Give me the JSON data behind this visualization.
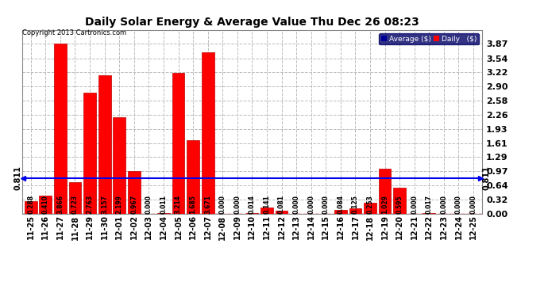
{
  "title": "Daily Solar Energy & Average Value Thu Dec 26 08:23",
  "copyright": "Copyright 2013 Cartronics.com",
  "categories": [
    "11-25",
    "11-26",
    "11-27",
    "11-28",
    "11-29",
    "11-30",
    "12-01",
    "12-02",
    "12-03",
    "12-04",
    "12-05",
    "12-06",
    "12-07",
    "12-08",
    "12-09",
    "12-10",
    "12-11",
    "12-12",
    "12-13",
    "12-14",
    "12-15",
    "12-16",
    "12-17",
    "12-18",
    "12-19",
    "12-20",
    "12-21",
    "12-22",
    "12-23",
    "12-24",
    "12-25"
  ],
  "values": [
    0.288,
    0.41,
    3.866,
    0.723,
    2.763,
    3.157,
    2.199,
    0.967,
    0.0,
    0.011,
    3.214,
    1.685,
    3.671,
    0.0,
    0.0,
    0.014,
    0.141,
    0.081,
    0.0,
    0.0,
    0.0,
    0.084,
    0.125,
    0.253,
    1.029,
    0.595,
    0.0,
    0.017,
    0.0,
    0.0,
    0.0
  ],
  "average_line": 0.811,
  "ylim": [
    0.0,
    4.19
  ],
  "yticks": [
    0.0,
    0.32,
    0.64,
    0.97,
    1.29,
    1.61,
    1.93,
    2.26,
    2.58,
    2.9,
    3.22,
    3.54,
    3.87
  ],
  "bar_color": "#FF0000",
  "bar_edge_color": "#BB0000",
  "average_line_color": "#0000EE",
  "background_color": "#FFFFFF",
  "plot_bg_color": "#FFFFFF",
  "grid_color": "#BBBBBB",
  "legend_avg_color": "#000099",
  "legend_daily_color": "#FF0000",
  "avg_label": "Average ($)",
  "daily_label": "Daily   ($)"
}
